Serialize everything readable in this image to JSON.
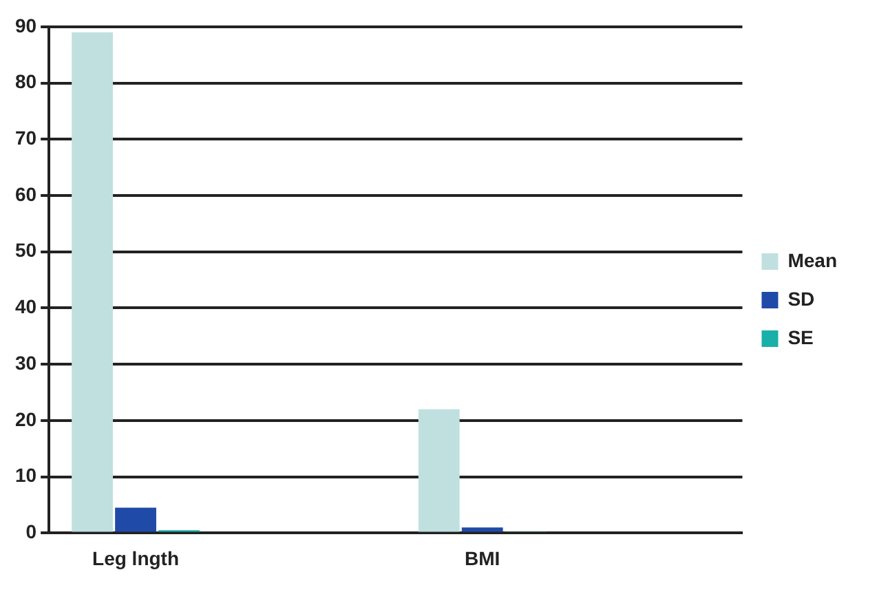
{
  "chart_data": {
    "type": "bar",
    "categories": [
      "Leg lngth",
      null,
      "BMI",
      null
    ],
    "series": [
      {
        "name": "Mean",
        "color": "#c0e0e0",
        "values": [
          89,
          null,
          22,
          null
        ]
      },
      {
        "name": "SD",
        "color": "#1f4aa8",
        "values": [
          4.5,
          null,
          1,
          null
        ]
      },
      {
        "name": "SE",
        "color": "#18b0a8",
        "values": [
          0.5,
          null,
          0.2,
          null
        ]
      }
    ],
    "ylim": [
      0,
      90
    ],
    "yticks": [
      0,
      10,
      20,
      30,
      40,
      50,
      60,
      70,
      80,
      90
    ],
    "grid": "y",
    "legend": "right"
  }
}
